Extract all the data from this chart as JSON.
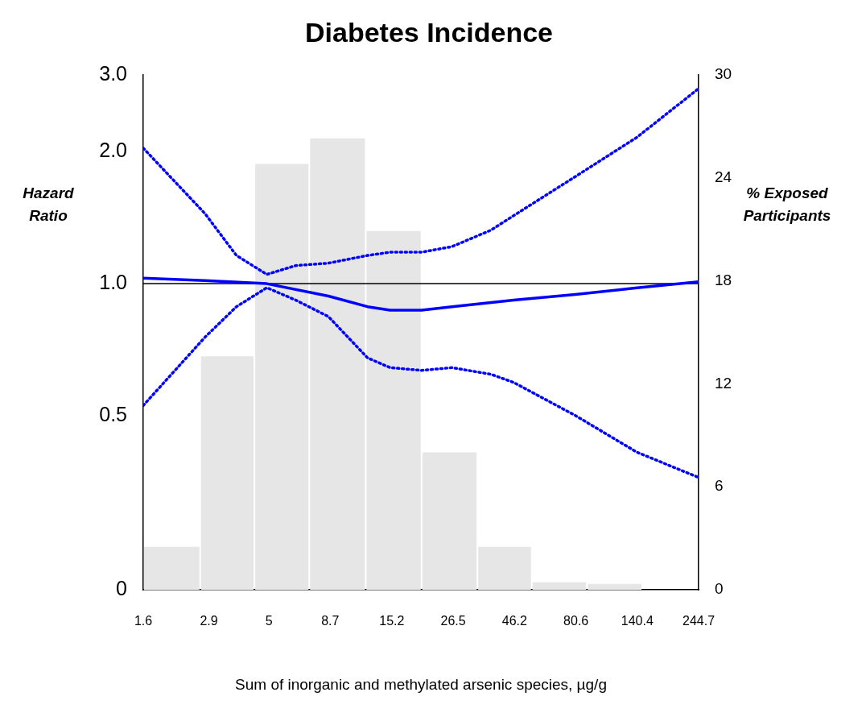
{
  "chart_data": {
    "type": "line",
    "title": "Diabetes Incidence",
    "xlabel": "Sum of inorganic and methylated arsenic species, µg/g",
    "ylabel": "Hazard Ratio",
    "y2label": "% Exposed Participants",
    "log": "xy",
    "xlim": [
      1.6,
      244.7
    ],
    "xticks": [
      1.6,
      2.9,
      5,
      8.7,
      15.2,
      26.5,
      46.2,
      80.6,
      140.4,
      244.7
    ],
    "ylim": [
      0.2,
      3.0
    ],
    "yticks": [
      {
        "value": 0.2,
        "label": "0"
      },
      0.5,
      {
        "value": 1,
        "label": "1.0"
      },
      {
        "value": 2,
        "label": "2.0"
      },
      {
        "value": 3,
        "label": "3.0"
      }
    ],
    "y2lim": [
      0,
      30
    ],
    "y2ticks": [
      0,
      6,
      12,
      18,
      24,
      30
    ],
    "ref_lines": [
      {
        "axis": "y",
        "value": 1,
        "color": "#000000"
      }
    ],
    "series": [
      {
        "type": "histogram",
        "axis": "y2",
        "color": "#e6e6e6",
        "bins": [
          1.6,
          2.68,
          4.38,
          7.2,
          12,
          19.9,
          33,
          54,
          89,
          147
        ],
        "values": [
          2.5,
          13.6,
          24.8,
          26.3,
          20.9,
          8.0,
          2.5,
          0.43,
          0.34
        ]
      },
      {
        "color": "#0000ff",
        "line_style": "solid",
        "x": [
          1.6,
          2.8,
          4.9,
          8.56,
          12.2,
          14.97,
          19.9,
          26.2,
          45.8,
          80.1,
          140.1,
          244.7
        ],
        "values": [
          1.03,
          1.017,
          1.0,
          0.937,
          0.886,
          0.87,
          0.87,
          0.886,
          0.917,
          0.945,
          0.978,
          1.01
        ]
      },
      {
        "color": "#0000ff",
        "line_style": "dotted",
        "x": [
          1.6,
          2.8,
          3.72,
          4.9,
          6.37,
          8.56,
          12.2,
          14.97,
          19.9,
          26.2,
          37.3,
          45.8,
          80.1,
          140.1,
          244.7
        ],
        "values": [
          2.04,
          1.445,
          1.16,
          1.05,
          1.1,
          1.114,
          1.16,
          1.18,
          1.18,
          1.215,
          1.325,
          1.43,
          1.756,
          2.16,
          2.79
        ]
      },
      {
        "color": "#0000ff",
        "line_style": "dotted",
        "x": [
          1.6,
          2.8,
          3.72,
          4.9,
          6.37,
          8.56,
          12.2,
          14.97,
          19.9,
          26.2,
          37.3,
          45.8,
          80.1,
          140.1,
          244.7
        ],
        "values": [
          0.527,
          0.755,
          0.886,
          0.979,
          0.917,
          0.841,
          0.677,
          0.643,
          0.634,
          0.643,
          0.621,
          0.595,
          0.5,
          0.412,
          0.361
        ]
      }
    ]
  }
}
